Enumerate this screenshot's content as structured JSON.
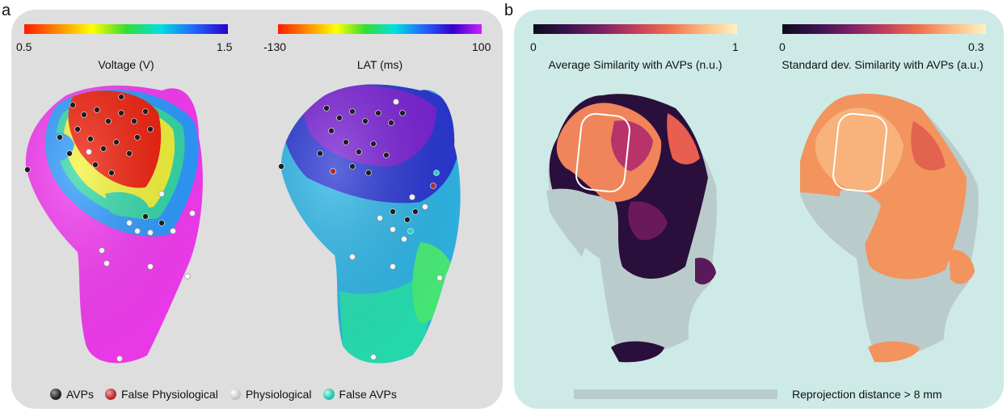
{
  "panel_a": {
    "letter": "a",
    "voltage": {
      "min": "0.5",
      "max": "1.5",
      "label": "Voltage (V)"
    },
    "lat": {
      "min": "-130",
      "max": "100",
      "label": "LAT (ms)"
    },
    "legend": [
      {
        "label": "AVPs",
        "color": "#222222"
      },
      {
        "label": "False Physiological",
        "color": "#b52a2a"
      },
      {
        "label": "Physiological",
        "color": "#e6e6e6"
      },
      {
        "label": "False AVPs",
        "color": "#2fd1b8"
      }
    ]
  },
  "panel_b": {
    "letter": "b",
    "avg": {
      "min": "0",
      "max": "1",
      "label": "Average Similarity with AVPs (n.u.)"
    },
    "std": {
      "min": "0",
      "max": "0.3",
      "label": "Standard dev. Similarity with AVPs (a.u.)"
    },
    "reprojection_label": "Reprojection distance > 8 mm"
  }
}
